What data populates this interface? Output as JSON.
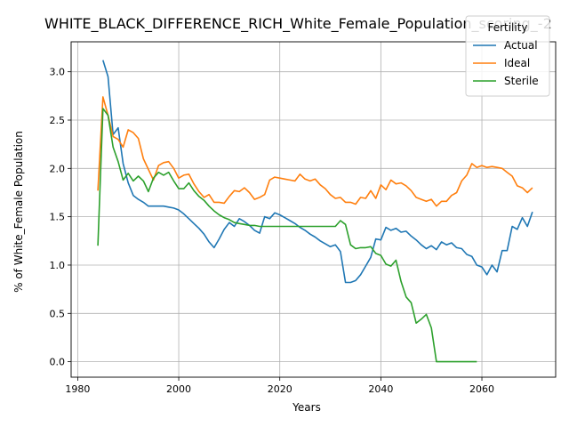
{
  "chart_data": {
    "type": "line",
    "title": "WHITE_BLACK_DIFFERENCE_RICH_White_Female_Population_scoring_-2",
    "xlabel": "Years",
    "ylabel": "% of White_Female Population",
    "xlim": [
      1978.7,
      2074.6
    ],
    "ylim": [
      -0.16,
      3.31
    ],
    "x_ticks": [
      1980,
      2000,
      2020,
      2040,
      2060
    ],
    "y_ticks": [
      0.0,
      0.5,
      1.0,
      1.5,
      2.0,
      2.5,
      3.0
    ],
    "y_tick_labels": [
      "0.0",
      "0.5",
      "1.0",
      "1.5",
      "2.0",
      "2.5",
      "3.0"
    ],
    "grid": true,
    "legend": {
      "title": "Fertility",
      "placement": "top-right"
    },
    "series": [
      {
        "name": "Actual",
        "color": "#1f77b4",
        "x": [
          1985,
          1986,
          1987,
          1988,
          1989,
          1990,
          1991,
          1992,
          1993,
          1994,
          1995,
          1996,
          1997,
          1998,
          1999,
          2000,
          2001,
          2002,
          2003,
          2004,
          2005,
          2006,
          2007,
          2008,
          2009,
          2010,
          2011,
          2012,
          2013,
          2014,
          2015,
          2016,
          2017,
          2018,
          2019,
          2020,
          2021,
          2022,
          2023,
          2024,
          2025,
          2026,
          2027,
          2028,
          2029,
          2030,
          2031,
          2032,
          2033,
          2034,
          2035,
          2036,
          2037,
          2038,
          2039,
          2040,
          2041,
          2042,
          2043,
          2044,
          2045,
          2046,
          2047,
          2048,
          2049,
          2050,
          2051,
          2052,
          2053,
          2054,
          2055,
          2056,
          2057,
          2058,
          2059,
          2060,
          2061,
          2062,
          2063,
          2064,
          2065,
          2066,
          2067,
          2068,
          2069,
          2070
        ],
        "y": [
          3.12,
          2.95,
          2.35,
          2.42,
          2.05,
          1.85,
          1.72,
          1.68,
          1.65,
          1.61,
          1.61,
          1.61,
          1.61,
          1.6,
          1.59,
          1.57,
          1.53,
          1.48,
          1.43,
          1.38,
          1.32,
          1.24,
          1.18,
          1.27,
          1.37,
          1.44,
          1.4,
          1.48,
          1.45,
          1.41,
          1.36,
          1.33,
          1.5,
          1.48,
          1.54,
          1.52,
          1.49,
          1.46,
          1.43,
          1.39,
          1.36,
          1.32,
          1.29,
          1.25,
          1.22,
          1.19,
          1.21,
          1.14,
          0.82,
          0.82,
          0.84,
          0.9,
          0.99,
          1.08,
          1.27,
          1.26,
          1.39,
          1.36,
          1.38,
          1.34,
          1.35,
          1.3,
          1.26,
          1.21,
          1.17,
          1.2,
          1.16,
          1.24,
          1.21,
          1.23,
          1.18,
          1.17,
          1.11,
          1.09,
          1.0,
          0.98,
          0.9,
          1.0,
          0.93,
          1.15,
          1.15,
          1.4,
          1.37,
          1.49,
          1.4,
          1.55
        ]
      },
      {
        "name": "Ideal",
        "color": "#ff7f0e",
        "x": [
          1984,
          1985,
          1986,
          1987,
          1988,
          1989,
          1990,
          1991,
          1992,
          1993,
          1994,
          1995,
          1996,
          1997,
          1998,
          1999,
          2000,
          2001,
          2002,
          2003,
          2004,
          2005,
          2006,
          2007,
          2008,
          2009,
          2010,
          2011,
          2012,
          2013,
          2014,
          2015,
          2016,
          2017,
          2018,
          2019,
          2020,
          2021,
          2022,
          2023,
          2024,
          2025,
          2026,
          2027,
          2028,
          2029,
          2030,
          2031,
          2032,
          2033,
          2034,
          2035,
          2036,
          2037,
          2038,
          2039,
          2040,
          2041,
          2042,
          2043,
          2044,
          2045,
          2046,
          2047,
          2048,
          2049,
          2050,
          2051,
          2052,
          2053,
          2054,
          2055,
          2056,
          2057,
          2058,
          2059,
          2060,
          2061,
          2062,
          2063,
          2064,
          2065,
          2066,
          2067,
          2068,
          2069,
          2070
        ],
        "y": [
          1.77,
          2.74,
          2.55,
          2.33,
          2.3,
          2.22,
          2.4,
          2.37,
          2.31,
          2.1,
          1.99,
          1.88,
          2.03,
          2.06,
          2.07,
          2.0,
          1.9,
          1.93,
          1.94,
          1.84,
          1.76,
          1.7,
          1.73,
          1.65,
          1.65,
          1.64,
          1.71,
          1.77,
          1.76,
          1.8,
          1.75,
          1.68,
          1.7,
          1.73,
          1.88,
          1.91,
          1.9,
          1.89,
          1.88,
          1.87,
          1.94,
          1.89,
          1.87,
          1.89,
          1.83,
          1.79,
          1.73,
          1.69,
          1.7,
          1.65,
          1.65,
          1.63,
          1.7,
          1.69,
          1.77,
          1.69,
          1.83,
          1.78,
          1.88,
          1.84,
          1.85,
          1.82,
          1.77,
          1.7,
          1.68,
          1.66,
          1.68,
          1.61,
          1.66,
          1.66,
          1.72,
          1.75,
          1.87,
          1.93,
          2.05,
          2.01,
          2.03,
          2.01,
          2.02,
          2.01,
          2.0,
          1.96,
          1.92,
          1.82,
          1.8,
          1.75,
          1.8
        ]
      },
      {
        "name": "Sterile",
        "color": "#2ca02c",
        "x": [
          1984,
          1985,
          1986,
          1987,
          1988,
          1989,
          1990,
          1991,
          1992,
          1993,
          1994,
          1995,
          1996,
          1997,
          1998,
          1999,
          2000,
          2001,
          2002,
          2003,
          2004,
          2005,
          2006,
          2007,
          2008,
          2009,
          2010,
          2011,
          2012,
          2013,
          2014,
          2015,
          2016,
          2017,
          2018,
          2019,
          2020,
          2021,
          2022,
          2023,
          2024,
          2025,
          2026,
          2027,
          2028,
          2029,
          2030,
          2031,
          2032,
          2033,
          2034,
          2035,
          2036,
          2037,
          2038,
          2039,
          2040,
          2041,
          2042,
          2043,
          2044,
          2045,
          2046,
          2047,
          2048,
          2049,
          2050,
          2051,
          2052,
          2053,
          2054,
          2055,
          2056,
          2057,
          2058,
          2059
        ],
        "y": [
          1.2,
          2.62,
          2.55,
          2.22,
          2.07,
          1.88,
          1.95,
          1.87,
          1.92,
          1.87,
          1.76,
          1.9,
          1.96,
          1.93,
          1.96,
          1.87,
          1.79,
          1.79,
          1.85,
          1.77,
          1.71,
          1.67,
          1.61,
          1.56,
          1.52,
          1.49,
          1.47,
          1.44,
          1.43,
          1.42,
          1.41,
          1.41,
          1.4,
          1.4,
          1.4,
          1.4,
          1.4,
          1.4,
          1.4,
          1.4,
          1.4,
          1.4,
          1.4,
          1.4,
          1.4,
          1.4,
          1.4,
          1.4,
          1.46,
          1.42,
          1.21,
          1.17,
          1.18,
          1.18,
          1.19,
          1.12,
          1.1,
          1.01,
          0.99,
          1.05,
          0.83,
          0.67,
          0.61,
          0.4,
          0.44,
          0.49,
          0.35,
          0.0,
          0.0,
          0.0,
          0.0,
          0.0,
          0.0,
          0.0,
          0.0,
          0.0
        ]
      }
    ]
  }
}
